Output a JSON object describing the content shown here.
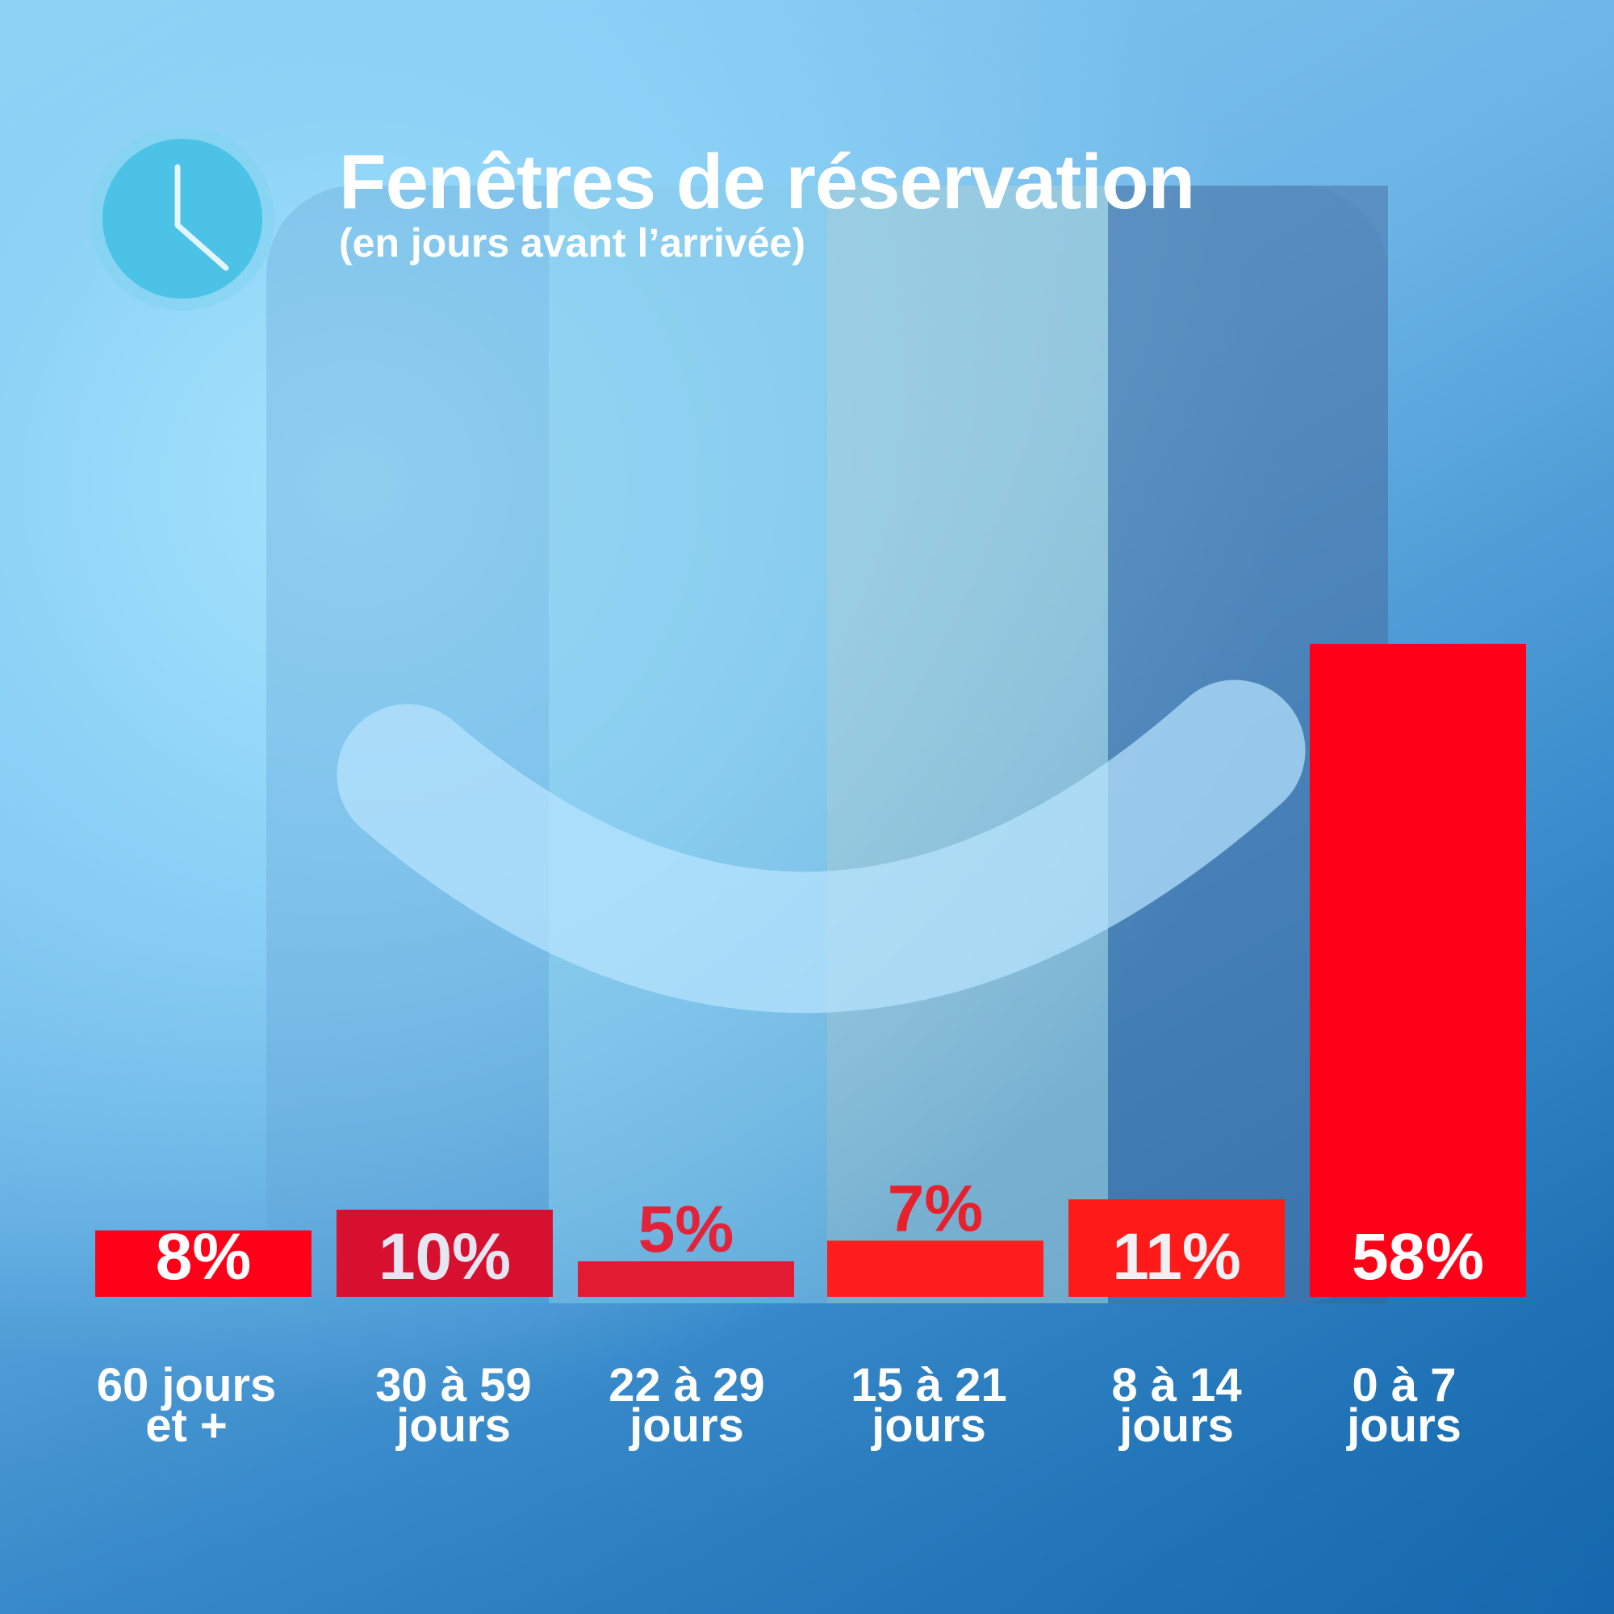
{
  "header": {
    "title": "Fenêtres de réservation",
    "subtitle": "(en jours avant l’arrivée)",
    "icon": "clock-icon"
  },
  "chart_data": {
    "type": "bar",
    "title": "Fenêtres de réservation",
    "subtitle": "(en jours avant l’arrivée)",
    "categories": [
      [
        "60 jours",
        "et +"
      ],
      [
        "30 à 59",
        "jours"
      ],
      [
        "22 à 29",
        "jours"
      ],
      [
        "15 à 21",
        "jours"
      ],
      [
        "8 à 14",
        "jours"
      ],
      [
        "0 à 7",
        "jours"
      ]
    ],
    "values": [
      8,
      10,
      5,
      7,
      11,
      58
    ],
    "labels": [
      "8%",
      "10%",
      "5%",
      "7%",
      "11%",
      "58%"
    ],
    "bar_colors": [
      "#ff0019",
      "#d8102f",
      "#e21a32",
      "#ff1e1e",
      "#ff1a1a",
      "#ff0019"
    ],
    "label_colors": [
      "#ffffff",
      "#e6e6f2",
      "#e2233a",
      "#e8202c",
      "#f0f0f5",
      "#ffffff"
    ],
    "label_inside": [
      true,
      true,
      false,
      false,
      true,
      true
    ],
    "xlabel": "",
    "ylabel": "",
    "ylim": [
      0,
      60
    ],
    "grid": false,
    "legend": "none"
  }
}
